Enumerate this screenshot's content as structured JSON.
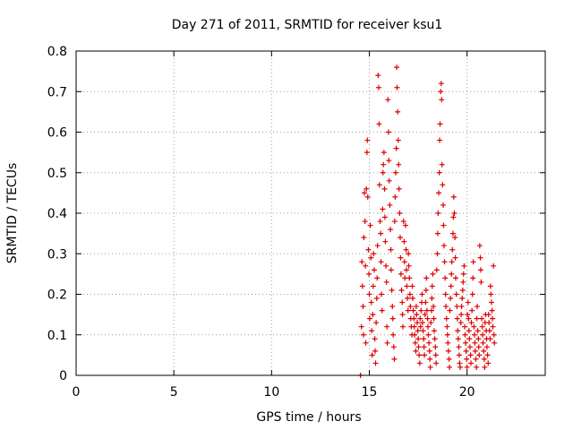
{
  "chart_data": {
    "type": "scatter",
    "title": "Day 271 of 2011, SRMTID for receiver ksu1",
    "xlabel": "GPS time / hours",
    "ylabel": "SRMTID / TECUs",
    "xlim": [
      0,
      24
    ],
    "ylim": [
      0,
      0.8
    ],
    "xticks": [
      0,
      5,
      10,
      15,
      20
    ],
    "yticks": [
      0,
      0.1,
      0.2,
      0.3,
      0.4,
      0.5,
      0.6,
      0.7,
      0.8
    ],
    "ytick_labels": [
      "0",
      "0.1",
      "0.2",
      "0.3",
      "0.4",
      "0.5",
      "0.6",
      "0.7",
      "0.8"
    ],
    "xtick_labels": [
      "0",
      "5",
      "10",
      "15",
      "20"
    ],
    "grid": true,
    "marker": "plus",
    "color": "#dd0000",
    "points": [
      [
        14.55,
        0.0
      ],
      [
        14.6,
        0.12
      ],
      [
        14.62,
        0.28
      ],
      [
        14.65,
        0.22
      ],
      [
        14.68,
        0.17
      ],
      [
        14.7,
        0.1
      ],
      [
        14.72,
        0.34
      ],
      [
        14.75,
        0.45
      ],
      [
        14.78,
        0.38
      ],
      [
        14.8,
        0.27
      ],
      [
        14.82,
        0.08
      ],
      [
        14.85,
        0.46
      ],
      [
        14.88,
        0.55
      ],
      [
        14.9,
        0.58
      ],
      [
        14.92,
        0.44
      ],
      [
        14.95,
        0.31
      ],
      [
        14.98,
        0.25
      ],
      [
        15.0,
        0.2
      ],
      [
        15.02,
        0.14
      ],
      [
        15.05,
        0.37
      ],
      [
        15.08,
        0.29
      ],
      [
        15.1,
        0.18
      ],
      [
        15.12,
        0.11
      ],
      [
        15.15,
        0.05
      ],
      [
        15.18,
        0.15
      ],
      [
        15.2,
        0.22
      ],
      [
        15.22,
        0.3
      ],
      [
        15.25,
        0.26
      ],
      [
        15.28,
        0.09
      ],
      [
        15.3,
        0.06
      ],
      [
        15.32,
        0.03
      ],
      [
        15.35,
        0.13
      ],
      [
        15.38,
        0.19
      ],
      [
        15.4,
        0.24
      ],
      [
        15.42,
        0.32
      ],
      [
        15.45,
        0.74
      ],
      [
        15.48,
        0.71
      ],
      [
        15.5,
        0.62
      ],
      [
        15.52,
        0.47
      ],
      [
        15.55,
        0.38
      ],
      [
        15.58,
        0.35
      ],
      [
        15.6,
        0.28
      ],
      [
        15.62,
        0.2
      ],
      [
        15.65,
        0.16
      ],
      [
        15.68,
        0.41
      ],
      [
        15.7,
        0.5
      ],
      [
        15.72,
        0.52
      ],
      [
        15.75,
        0.55
      ],
      [
        15.78,
        0.46
      ],
      [
        15.8,
        0.39
      ],
      [
        15.82,
        0.33
      ],
      [
        15.85,
        0.27
      ],
      [
        15.88,
        0.23
      ],
      [
        15.9,
        0.12
      ],
      [
        15.92,
        0.08
      ],
      [
        15.95,
        0.68
      ],
      [
        15.98,
        0.6
      ],
      [
        16.0,
        0.53
      ],
      [
        16.02,
        0.48
      ],
      [
        16.05,
        0.42
      ],
      [
        16.08,
        0.36
      ],
      [
        16.1,
        0.31
      ],
      [
        16.12,
        0.26
      ],
      [
        16.15,
        0.21
      ],
      [
        16.18,
        0.17
      ],
      [
        16.2,
        0.14
      ],
      [
        16.22,
        0.1
      ],
      [
        16.25,
        0.07
      ],
      [
        16.28,
        0.04
      ],
      [
        16.3,
        0.38
      ],
      [
        16.32,
        0.44
      ],
      [
        16.35,
        0.5
      ],
      [
        16.38,
        0.56
      ],
      [
        16.4,
        0.76
      ],
      [
        16.42,
        0.71
      ],
      [
        16.45,
        0.65
      ],
      [
        16.48,
        0.58
      ],
      [
        16.5,
        0.52
      ],
      [
        16.52,
        0.46
      ],
      [
        16.55,
        0.4
      ],
      [
        16.58,
        0.34
      ],
      [
        16.6,
        0.29
      ],
      [
        16.62,
        0.25
      ],
      [
        16.65,
        0.21
      ],
      [
        16.68,
        0.18
      ],
      [
        16.7,
        0.15
      ],
      [
        16.72,
        0.12
      ],
      [
        16.75,
        0.38
      ],
      [
        16.78,
        0.33
      ],
      [
        16.8,
        0.28
      ],
      [
        16.82,
        0.24
      ],
      [
        16.85,
        0.37
      ],
      [
        16.88,
        0.31
      ],
      [
        16.9,
        0.26
      ],
      [
        16.92,
        0.22
      ],
      [
        16.95,
        0.19
      ],
      [
        16.98,
        0.16
      ],
      [
        17.0,
        0.3
      ],
      [
        17.02,
        0.27
      ],
      [
        17.05,
        0.24
      ],
      [
        17.08,
        0.2
      ],
      [
        17.1,
        0.17
      ],
      [
        17.12,
        0.14
      ],
      [
        17.15,
        0.12
      ],
      [
        17.18,
        0.1
      ],
      [
        17.2,
        0.22
      ],
      [
        17.22,
        0.19
      ],
      [
        17.25,
        0.16
      ],
      [
        17.28,
        0.14
      ],
      [
        17.3,
        0.12
      ],
      [
        17.32,
        0.1
      ],
      [
        17.35,
        0.08
      ],
      [
        17.38,
        0.06
      ],
      [
        17.4,
        0.17
      ],
      [
        17.42,
        0.15
      ],
      [
        17.45,
        0.13
      ],
      [
        17.48,
        0.11
      ],
      [
        17.5,
        0.09
      ],
      [
        17.52,
        0.07
      ],
      [
        17.55,
        0.05
      ],
      [
        17.58,
        0.03
      ],
      [
        17.6,
        0.14
      ],
      [
        17.62,
        0.12
      ],
      [
        17.65,
        0.16
      ],
      [
        17.68,
        0.18
      ],
      [
        17.7,
        0.2
      ],
      [
        17.72,
        0.13
      ],
      [
        17.75,
        0.11
      ],
      [
        17.78,
        0.09
      ],
      [
        17.8,
        0.07
      ],
      [
        17.82,
        0.05
      ],
      [
        17.85,
        0.15
      ],
      [
        17.88,
        0.18
      ],
      [
        17.9,
        0.21
      ],
      [
        17.92,
        0.24
      ],
      [
        17.95,
        0.16
      ],
      [
        17.98,
        0.14
      ],
      [
        18.0,
        0.12
      ],
      [
        18.02,
        0.1
      ],
      [
        18.05,
        0.08
      ],
      [
        18.08,
        0.06
      ],
      [
        18.1,
        0.04
      ],
      [
        18.12,
        0.02
      ],
      [
        18.15,
        0.13
      ],
      [
        18.18,
        0.16
      ],
      [
        18.2,
        0.19
      ],
      [
        18.22,
        0.22
      ],
      [
        18.25,
        0.25
      ],
      [
        18.28,
        0.17
      ],
      [
        18.3,
        0.14
      ],
      [
        18.32,
        0.11
      ],
      [
        18.35,
        0.09
      ],
      [
        18.38,
        0.07
      ],
      [
        18.4,
        0.05
      ],
      [
        18.42,
        0.03
      ],
      [
        18.45,
        0.26
      ],
      [
        18.48,
        0.3
      ],
      [
        18.5,
        0.35
      ],
      [
        18.52,
        0.4
      ],
      [
        18.55,
        0.45
      ],
      [
        18.58,
        0.5
      ],
      [
        18.6,
        0.58
      ],
      [
        18.62,
        0.62
      ],
      [
        18.65,
        0.7
      ],
      [
        18.68,
        0.72
      ],
      [
        18.7,
        0.68
      ],
      [
        18.72,
        0.52
      ],
      [
        18.75,
        0.47
      ],
      [
        18.78,
        0.42
      ],
      [
        18.8,
        0.37
      ],
      [
        18.82,
        0.32
      ],
      [
        18.85,
        0.28
      ],
      [
        18.88,
        0.24
      ],
      [
        18.9,
        0.2
      ],
      [
        18.92,
        0.17
      ],
      [
        18.95,
        0.14
      ],
      [
        18.98,
        0.12
      ],
      [
        19.0,
        0.1
      ],
      [
        19.02,
        0.08
      ],
      [
        19.05,
        0.06
      ],
      [
        19.08,
        0.04
      ],
      [
        19.1,
        0.02
      ],
      [
        19.12,
        0.16
      ],
      [
        19.15,
        0.19
      ],
      [
        19.18,
        0.22
      ],
      [
        19.2,
        0.25
      ],
      [
        19.22,
        0.28
      ],
      [
        19.25,
        0.31
      ],
      [
        19.28,
        0.35
      ],
      [
        19.3,
        0.39
      ],
      [
        19.32,
        0.44
      ],
      [
        19.35,
        0.4
      ],
      [
        19.38,
        0.34
      ],
      [
        19.4,
        0.29
      ],
      [
        19.42,
        0.24
      ],
      [
        19.45,
        0.2
      ],
      [
        19.48,
        0.17
      ],
      [
        19.5,
        0.14
      ],
      [
        19.52,
        0.11
      ],
      [
        19.55,
        0.09
      ],
      [
        19.58,
        0.07
      ],
      [
        19.6,
        0.05
      ],
      [
        19.62,
        0.03
      ],
      [
        19.65,
        0.02
      ],
      [
        19.68,
        0.13
      ],
      [
        19.7,
        0.15
      ],
      [
        19.72,
        0.17
      ],
      [
        19.75,
        0.19
      ],
      [
        19.78,
        0.21
      ],
      [
        19.8,
        0.23
      ],
      [
        19.82,
        0.25
      ],
      [
        19.85,
        0.27
      ],
      [
        19.88,
        0.12
      ],
      [
        19.9,
        0.1
      ],
      [
        19.92,
        0.08
      ],
      [
        19.95,
        0.06
      ],
      [
        19.98,
        0.04
      ],
      [
        20.0,
        0.02
      ],
      [
        20.02,
        0.15
      ],
      [
        20.05,
        0.18
      ],
      [
        20.08,
        0.14
      ],
      [
        20.1,
        0.11
      ],
      [
        20.12,
        0.09
      ],
      [
        20.15,
        0.07
      ],
      [
        20.18,
        0.05
      ],
      [
        20.2,
        0.03
      ],
      [
        20.22,
        0.13
      ],
      [
        20.25,
        0.16
      ],
      [
        20.28,
        0.2
      ],
      [
        20.3,
        0.24
      ],
      [
        20.32,
        0.28
      ],
      [
        20.35,
        0.12
      ],
      [
        20.38,
        0.1
      ],
      [
        20.4,
        0.08
      ],
      [
        20.42,
        0.06
      ],
      [
        20.45,
        0.04
      ],
      [
        20.48,
        0.02
      ],
      [
        20.5,
        0.14
      ],
      [
        20.52,
        0.17
      ],
      [
        20.55,
        0.11
      ],
      [
        20.58,
        0.09
      ],
      [
        20.6,
        0.07
      ],
      [
        20.62,
        0.05
      ],
      [
        20.65,
        0.32
      ],
      [
        20.68,
        0.29
      ],
      [
        20.7,
        0.26
      ],
      [
        20.72,
        0.23
      ],
      [
        20.75,
        0.14
      ],
      [
        20.78,
        0.12
      ],
      [
        20.8,
        0.1
      ],
      [
        20.82,
        0.08
      ],
      [
        20.85,
        0.06
      ],
      [
        20.88,
        0.04
      ],
      [
        20.9,
        0.02
      ],
      [
        20.92,
        0.13
      ],
      [
        20.95,
        0.15
      ],
      [
        20.98,
        0.11
      ],
      [
        21.0,
        0.09
      ],
      [
        21.02,
        0.07
      ],
      [
        21.05,
        0.05
      ],
      [
        21.08,
        0.03
      ],
      [
        21.1,
        0.15
      ],
      [
        21.12,
        0.13
      ],
      [
        21.15,
        0.11
      ],
      [
        21.18,
        0.09
      ],
      [
        21.2,
        0.22
      ],
      [
        21.22,
        0.2
      ],
      [
        21.25,
        0.18
      ],
      [
        21.28,
        0.16
      ],
      [
        21.3,
        0.14
      ],
      [
        21.32,
        0.12
      ],
      [
        21.35,
        0.27
      ],
      [
        21.38,
        0.1
      ],
      [
        21.4,
        0.08
      ]
    ]
  }
}
